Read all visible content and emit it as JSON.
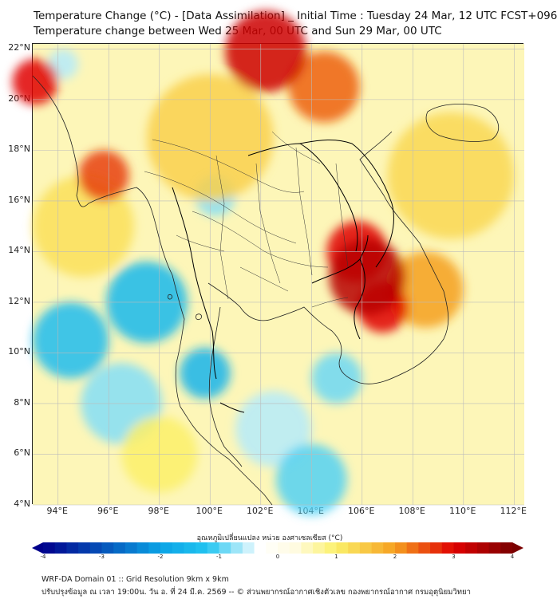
{
  "header": {
    "title_line1": "Temperature Change (°C) - [Data Assimilation] _ Initial Time : Tuesday 24 Mar, 12 UTC FCST+096",
    "title_line2": "Temperature change between Wed 25 Mar, 00 UTC and Sun 29 Mar, 00 UTC"
  },
  "map": {
    "lat_labels": [
      "22°N",
      "20°N",
      "18°N",
      "16°N",
      "14°N",
      "12°N",
      "10°N",
      "8°N",
      "6°N",
      "4°N"
    ],
    "lon_labels": [
      "94°E",
      "96°E",
      "98°E",
      "100°E",
      "102°E",
      "104°E",
      "106°E",
      "108°E",
      "110°E",
      "112°E"
    ],
    "lat_range": [
      4,
      22.2
    ],
    "lon_range": [
      93,
      112.4
    ],
    "field_regions": [
      {
        "lon": 106.2,
        "lat": 13.0,
        "value": 3.4,
        "spread": 1.5
      },
      {
        "lon": 105.8,
        "lat": 14.0,
        "value": 3.0,
        "spread": 1.2
      },
      {
        "lon": 106.8,
        "lat": 11.8,
        "value": 3.0,
        "spread": 1.0
      },
      {
        "lon": 102.2,
        "lat": 21.9,
        "value": 3.2,
        "spread": 1.6
      },
      {
        "lon": 104.5,
        "lat": 20.5,
        "value": 2.4,
        "spread": 1.4
      },
      {
        "lon": 93.1,
        "lat": 20.7,
        "value": 3.0,
        "spread": 0.9
      },
      {
        "lon": 95.8,
        "lat": 17.0,
        "value": 2.6,
        "spread": 1.0
      },
      {
        "lon": 108.5,
        "lat": 12.5,
        "value": 2.0,
        "spread": 1.5
      },
      {
        "lon": 95.0,
        "lat": 15.0,
        "value": 1.2,
        "spread": 2.0
      },
      {
        "lon": 100.0,
        "lat": 18.5,
        "value": 1.4,
        "spread": 2.5
      },
      {
        "lon": 109.5,
        "lat": 17.0,
        "value": 1.3,
        "spread": 2.5
      },
      {
        "lon": 98.0,
        "lat": 6.0,
        "value": 1.0,
        "spread": 1.5
      },
      {
        "lon": 97.5,
        "lat": 12.0,
        "value": -1.5,
        "spread": 1.6
      },
      {
        "lon": 94.5,
        "lat": 10.5,
        "value": -1.4,
        "spread": 1.5
      },
      {
        "lon": 99.8,
        "lat": 9.2,
        "value": -1.6,
        "spread": 1.0
      },
      {
        "lon": 100.2,
        "lat": 16.2,
        "value": -0.8,
        "spread": 0.8
      },
      {
        "lon": 105.0,
        "lat": 9.0,
        "value": -0.9,
        "spread": 1.0
      },
      {
        "lon": 104.0,
        "lat": 5.0,
        "value": -1.0,
        "spread": 1.4
      },
      {
        "lon": 96.5,
        "lat": 8.0,
        "value": -0.8,
        "spread": 1.6
      },
      {
        "lon": 102.5,
        "lat": 7.0,
        "value": -0.6,
        "spread": 1.5
      },
      {
        "lon": 94.2,
        "lat": 21.4,
        "value": -0.6,
        "spread": 0.6
      }
    ]
  },
  "colorbar": {
    "title": "อุณหภูมิเปลี่ยนแปลง หน่วย องศาเซลเซียส (°C)",
    "tick_labels": [
      "-4",
      "-3",
      "-2",
      "-1",
      "0",
      "1",
      "2",
      "3",
      "4"
    ],
    "range": [
      -4,
      4
    ]
  },
  "footer": {
    "line1": "WRF-DA Domain 01 :: Grid Resolution 9km x 9km",
    "line2": "ปรับปรุงข้อมูล ณ เวลา 19:00น. วัน อ. ที่ 24 มี.ค. 2569 -- © ส่วนพยากรณ์อากาศเชิงตัวเลข กองพยากรณ์อากาศ กรมอุตุนิยมวิทยา"
  },
  "colors": {
    "deep_blue": "#00008b",
    "cyan": "#22c4f0",
    "white": "#ffffff",
    "yellow": "#fbf06a",
    "orange": "#f5a020",
    "red": "#e00000",
    "dark_red": "#7a0000"
  }
}
